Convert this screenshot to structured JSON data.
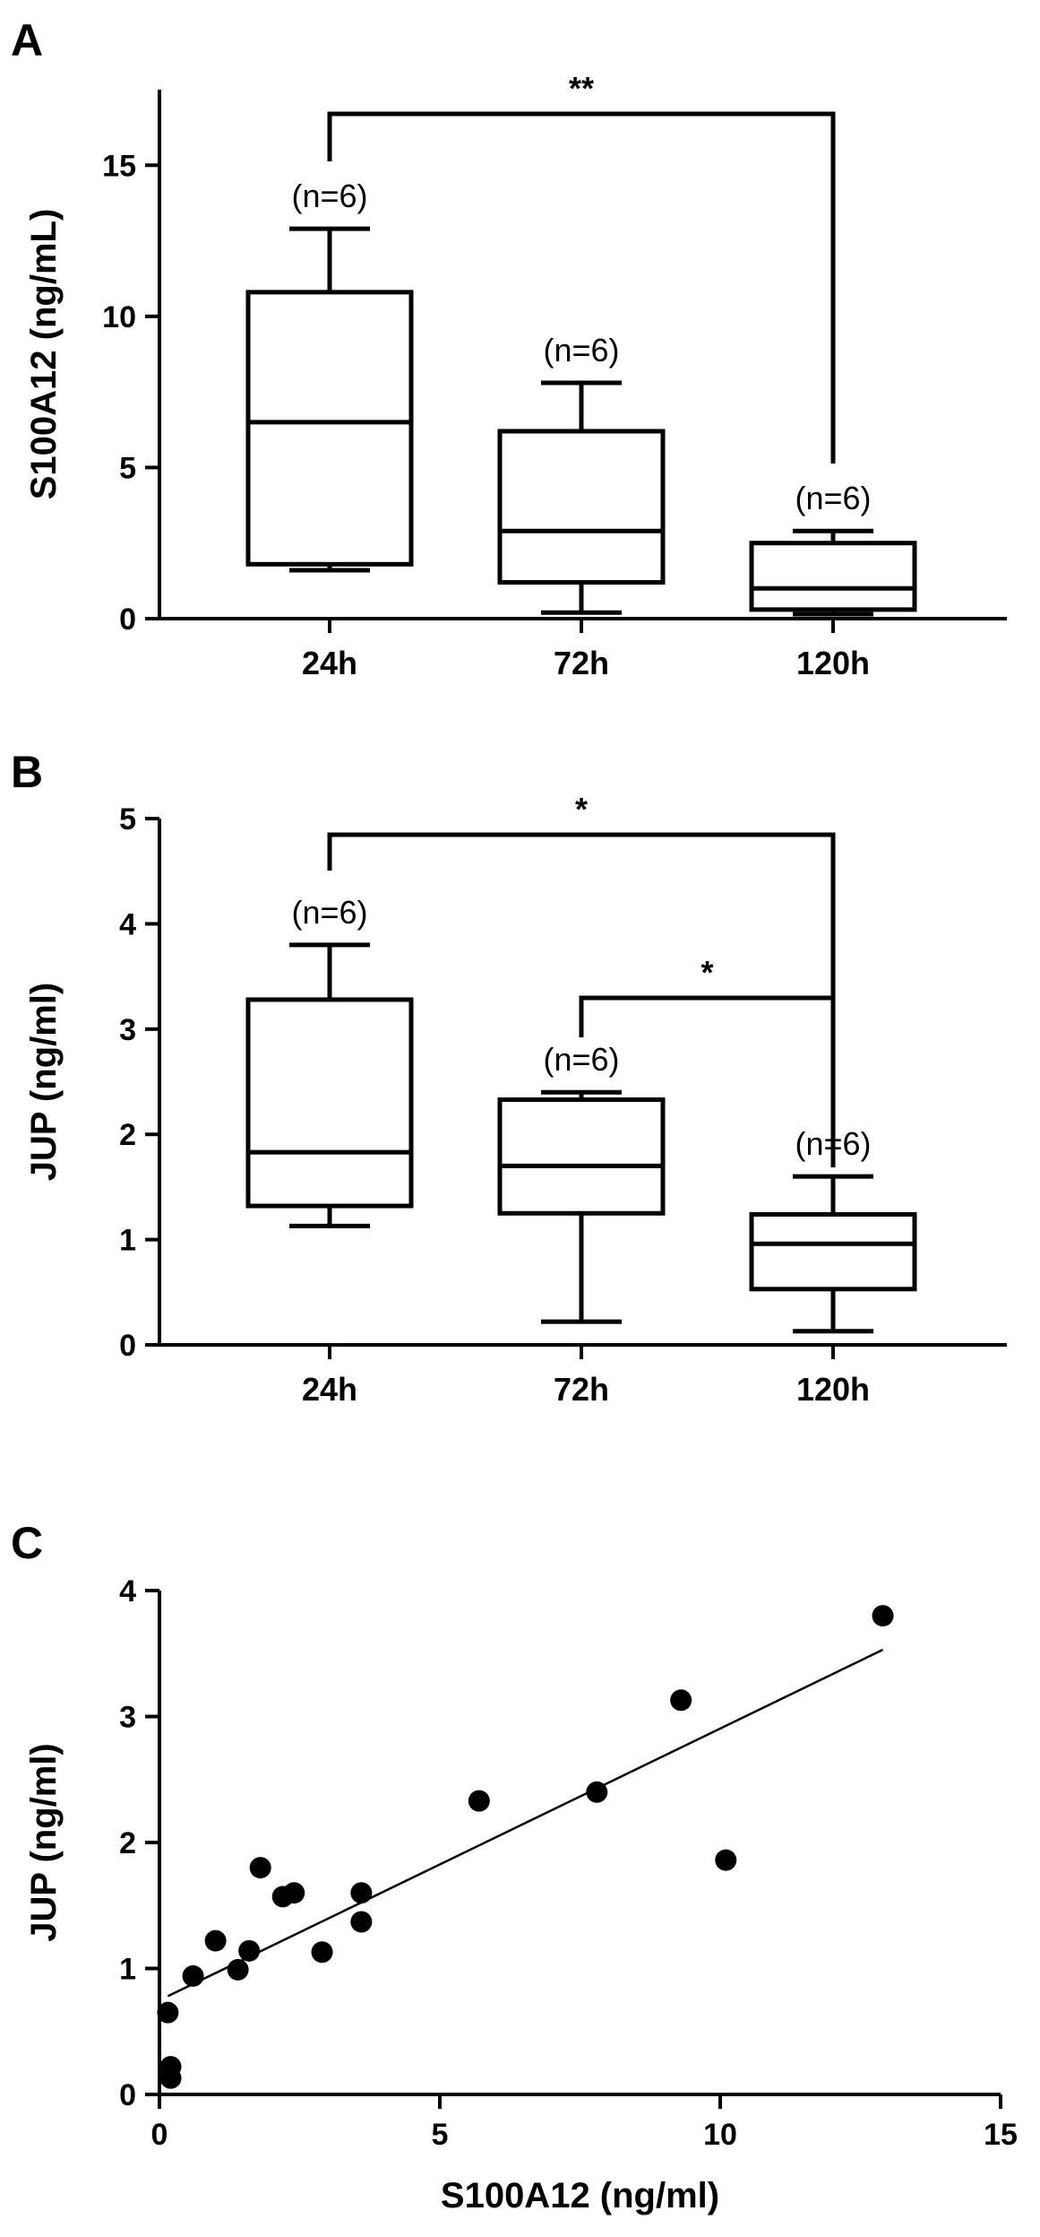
{
  "panels": [
    {
      "letter": "A"
    },
    {
      "letter": "B"
    },
    {
      "letter": "C"
    }
  ],
  "chart_data": [
    {
      "panel": "A",
      "type": "box",
      "ylabel": "S100A12 (ng/mL)",
      "ylim": [
        0,
        17.5
      ],
      "yticks": [
        0,
        5,
        10,
        15
      ],
      "categories": [
        "24h",
        "72h",
        "120h"
      ],
      "boxes": [
        {
          "category": "24h",
          "min": 1.6,
          "q1": 1.8,
          "median": 6.5,
          "q3": 10.8,
          "max": 12.9,
          "n_label": "(n=6)"
        },
        {
          "category": "72h",
          "min": 0.2,
          "q1": 1.2,
          "median": 2.9,
          "q3": 6.2,
          "max": 7.8,
          "n_label": "(n=6)"
        },
        {
          "category": "120h",
          "min": 0.15,
          "q1": 0.3,
          "median": 1.0,
          "q3": 2.5,
          "max": 2.9,
          "n_label": "(n=6)"
        }
      ],
      "significance": [
        {
          "from": "24h",
          "to": "120h",
          "label": "**"
        }
      ]
    },
    {
      "panel": "B",
      "type": "box",
      "ylabel": "JUP (ng/ml)",
      "ylim": [
        0,
        5
      ],
      "yticks": [
        0,
        1,
        2,
        3,
        4,
        5
      ],
      "categories": [
        "24h",
        "72h",
        "120h"
      ],
      "boxes": [
        {
          "category": "24h",
          "min": 1.13,
          "q1": 1.32,
          "median": 1.83,
          "q3": 3.28,
          "max": 3.8,
          "n_label": "(n=6)"
        },
        {
          "category": "72h",
          "min": 0.22,
          "q1": 1.25,
          "median": 1.7,
          "q3": 2.33,
          "max": 2.4,
          "n_label": "(n=6)"
        },
        {
          "category": "120h",
          "min": 0.13,
          "q1": 0.53,
          "median": 0.96,
          "q3": 1.24,
          "max": 1.6,
          "n_label": "(n=6)"
        }
      ],
      "significance": [
        {
          "from": "24h",
          "to": "120h",
          "label": "*"
        },
        {
          "from": "72h",
          "to": "120h",
          "label": "*"
        }
      ]
    },
    {
      "panel": "C",
      "type": "scatter",
      "xlabel": "S100A12 (ng/ml)",
      "ylabel": "JUP (ng/ml)",
      "xlim": [
        0,
        15
      ],
      "ylim": [
        0,
        4
      ],
      "xticks": [
        0,
        5,
        10,
        15
      ],
      "yticks": [
        0,
        1,
        2,
        3,
        4
      ],
      "points": [
        {
          "x": 12.9,
          "y": 3.8
        },
        {
          "x": 9.3,
          "y": 3.13
        },
        {
          "x": 10.1,
          "y": 1.86
        },
        {
          "x": 7.8,
          "y": 2.4
        },
        {
          "x": 5.7,
          "y": 2.33
        },
        {
          "x": 3.6,
          "y": 1.6
        },
        {
          "x": 3.6,
          "y": 1.37
        },
        {
          "x": 2.9,
          "y": 1.13
        },
        {
          "x": 2.4,
          "y": 1.6
        },
        {
          "x": 2.2,
          "y": 1.57
        },
        {
          "x": 1.8,
          "y": 1.8
        },
        {
          "x": 1.6,
          "y": 1.14
        },
        {
          "x": 1.4,
          "y": 0.99
        },
        {
          "x": 1.0,
          "y": 1.22
        },
        {
          "x": 0.6,
          "y": 0.94
        },
        {
          "x": 0.15,
          "y": 0.65
        },
        {
          "x": 0.2,
          "y": 0.22
        },
        {
          "x": 0.2,
          "y": 0.13
        }
      ],
      "fit_line": {
        "x": [
          0.15,
          12.9
        ],
        "y": [
          0.78,
          3.53
        ]
      }
    }
  ]
}
